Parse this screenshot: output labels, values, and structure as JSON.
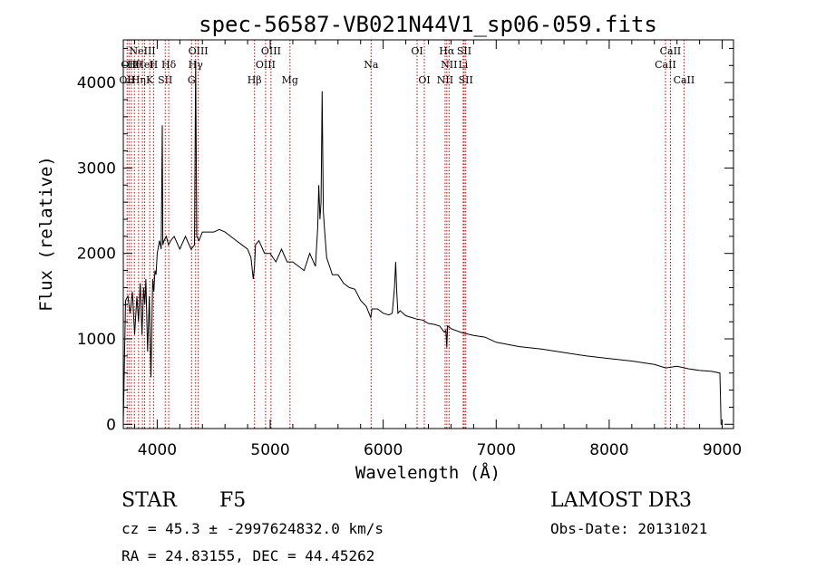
{
  "chart_data": {
    "type": "line",
    "title": "spec-56587-VB021N44V1_sp06-059.fits",
    "xlabel": "Wavelength (Å)",
    "ylabel": "Flux (relative)",
    "xlim": [
      3700,
      9100
    ],
    "ylim": [
      -50,
      4500
    ],
    "xticks": [
      4000,
      5000,
      6000,
      7000,
      8000,
      9000
    ],
    "xtick_labels": [
      "4000",
      "5000",
      "6000",
      "7000",
      "8000",
      "9000"
    ],
    "yticks": [
      0,
      1000,
      2000,
      3000,
      4000
    ],
    "ytick_labels": [
      "0",
      "1000",
      "2000",
      "3000",
      "4000"
    ],
    "series": [
      {
        "name": "flux",
        "x": [
          3700,
          3720,
          3740,
          3760,
          3780,
          3800,
          3820,
          3835,
          3850,
          3865,
          3880,
          3890,
          3900,
          3915,
          3930,
          3945,
          3960,
          3970,
          3980,
          3990,
          4000,
          4020,
          4035,
          4045,
          4050,
          4060,
          4080,
          4100,
          4120,
          4150,
          4200,
          4250,
          4300,
          4330,
          4340,
          4350,
          4370,
          4400,
          4450,
          4500,
          4550,
          4600,
          4650,
          4700,
          4750,
          4800,
          4830,
          4850,
          4861,
          4870,
          4900,
          4950,
          5000,
          5050,
          5100,
          5150,
          5200,
          5250,
          5300,
          5350,
          5400,
          5420,
          5430,
          5440,
          5450,
          5460,
          5470,
          5480,
          5500,
          5550,
          5600,
          5650,
          5700,
          5750,
          5800,
          5850,
          5890,
          5900,
          5950,
          6000,
          6050,
          6080,
          6100,
          6110,
          6120,
          6130,
          6150,
          6200,
          6250,
          6300,
          6350,
          6400,
          6450,
          6500,
          6540,
          6555,
          6563,
          6570,
          6600,
          6700,
          6800,
          6900,
          7000,
          7200,
          7400,
          7600,
          7800,
          8000,
          8200,
          8400,
          8500,
          8600,
          8700,
          8800,
          8900,
          8980,
          8990,
          9000
        ],
        "values": [
          0,
          1450,
          1500,
          1300,
          1550,
          1050,
          1500,
          1200,
          1650,
          1050,
          1600,
          1400,
          1700,
          850,
          1500,
          550,
          1700,
          1550,
          1800,
          1750,
          2000,
          2150,
          2050,
          3500,
          2100,
          2150,
          2200,
          2100,
          2150,
          2200,
          2050,
          2200,
          2050,
          2100,
          4250,
          2200,
          2150,
          2250,
          2250,
          2250,
          2280,
          2250,
          2200,
          2150,
          2100,
          2050,
          1950,
          1700,
          1850,
          2100,
          2150,
          2000,
          2000,
          1900,
          2050,
          1900,
          1900,
          1850,
          1800,
          2000,
          1850,
          2300,
          2800,
          2400,
          2600,
          3900,
          2500,
          2300,
          1950,
          1750,
          1750,
          1650,
          1600,
          1580,
          1450,
          1380,
          1250,
          1350,
          1350,
          1300,
          1280,
          1300,
          1600,
          1900,
          1550,
          1300,
          1330,
          1270,
          1250,
          1230,
          1220,
          1180,
          1170,
          1150,
          1080,
          1100,
          900,
          1150,
          1120,
          1070,
          1040,
          1020,
          960,
          910,
          880,
          840,
          800,
          770,
          740,
          700,
          660,
          680,
          650,
          630,
          620,
          600,
          0,
          0
        ]
      }
    ],
    "lines": [
      {
        "w": 3734,
        "row": 0,
        "label": "OII"
      },
      {
        "w": 3750,
        "row": 1,
        "label": "OII"
      },
      {
        "w": 3771,
        "row": 0,
        "label": "H"
      },
      {
        "w": 3798,
        "row": 1,
        "label": "Hθ"
      },
      {
        "w": 3835,
        "row": 0,
        "label": "Hη"
      },
      {
        "w": 3869,
        "row": 2,
        "label": "NeIII"
      },
      {
        "w": 3889,
        "row": 1,
        "label": "HeI"
      },
      {
        "w": 3934,
        "row": 0,
        "label": "K"
      },
      {
        "w": 3968,
        "row": 1,
        "label": "H"
      },
      {
        "w": 4071,
        "row": 0,
        "label": "SII"
      },
      {
        "w": 4102,
        "row": 1,
        "label": "Hδ"
      },
      {
        "w": 4304,
        "row": 0,
        "label": "G"
      },
      {
        "w": 4340,
        "row": 1,
        "label": "Hγ"
      },
      {
        "w": 4363,
        "row": 2,
        "label": "OIII"
      },
      {
        "w": 4861,
        "row": 0,
        "label": "Hβ"
      },
      {
        "w": 4959,
        "row": 1,
        "label": "OIII"
      },
      {
        "w": 5007,
        "row": 2,
        "label": "OIII"
      },
      {
        "w": 5175,
        "row": 0,
        "label": "Mg"
      },
      {
        "w": 5893,
        "row": 1,
        "label": "Na"
      },
      {
        "w": 6300,
        "row": 2,
        "label": "OI"
      },
      {
        "w": 6364,
        "row": 0,
        "label": "OI"
      },
      {
        "w": 6548,
        "row": 0,
        "label": "NII"
      },
      {
        "w": 6563,
        "row": 2,
        "label": "Hα"
      },
      {
        "w": 6583,
        "row": 1,
        "label": "NII"
      },
      {
        "w": 6708,
        "row": 1,
        "label": "Li"
      },
      {
        "w": 6717,
        "row": 2,
        "label": "SII"
      },
      {
        "w": 6731,
        "row": 0,
        "label": "SII"
      },
      {
        "w": 8498,
        "row": 1,
        "label": "CaII"
      },
      {
        "w": 8542,
        "row": 2,
        "label": "CaII"
      },
      {
        "w": 8662,
        "row": 0,
        "label": "CaII"
      }
    ]
  },
  "info": {
    "class": "STAR",
    "subclass": "F5",
    "survey": "LAMOST DR3",
    "cz": "cz = 45.3 ± -2997624832.0 km/s",
    "obsdate": "Obs-Date: 20131021",
    "radec": "RA =  24.83155, DEC =  44.45262"
  },
  "colors": {
    "line_marker": "#cc0000",
    "ink": "#000000"
  }
}
